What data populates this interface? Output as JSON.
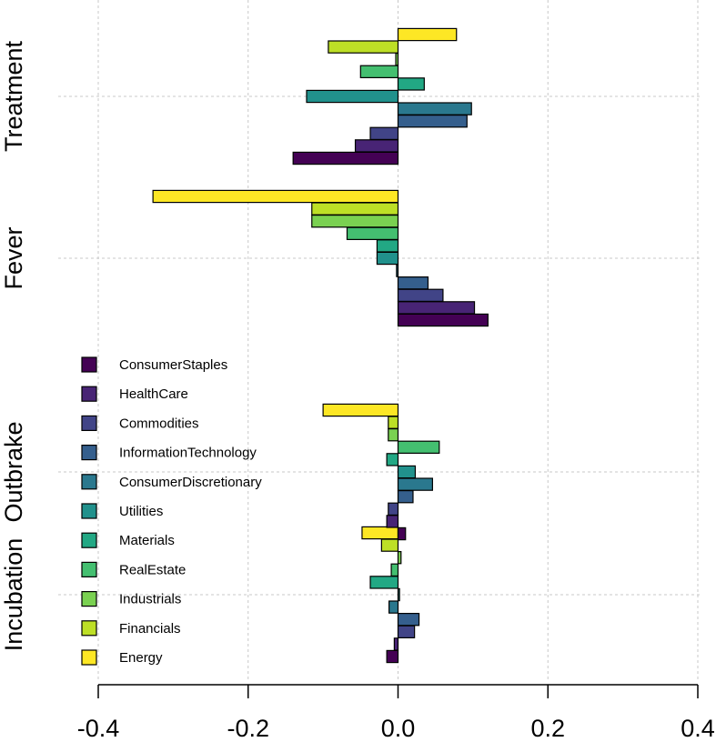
{
  "chart_data": {
    "type": "bar",
    "orientation": "horizontal",
    "title": "",
    "xlabel": "",
    "ylabel": "",
    "xlim": [
      -0.4,
      0.4
    ],
    "x_ticks": [
      "-0.4",
      "-0.2",
      "0.0",
      "0.2",
      "0.4"
    ],
    "x_tick_values": [
      -0.4,
      -0.2,
      0.0,
      0.2,
      0.4
    ],
    "grid": true,
    "legend_position": "bottom-left",
    "groups": [
      "Incubation",
      "Outbrake",
      "Fever",
      "Treatment"
    ],
    "series": [
      {
        "name": "ConsumerStaples",
        "color": "#440154",
        "values": [
          -0.015,
          0.01,
          0.12,
          -0.14
        ]
      },
      {
        "name": "HealthCare",
        "color": "#482475",
        "values": [
          -0.005,
          -0.015,
          0.102,
          -0.057
        ]
      },
      {
        "name": "Commodities",
        "color": "#414487",
        "values": [
          0.022,
          -0.013,
          0.06,
          -0.037
        ]
      },
      {
        "name": "InformationTechnology",
        "color": "#355f8d",
        "values": [
          0.028,
          0.02,
          0.04,
          0.092
        ]
      },
      {
        "name": "ConsumerDiscretionary",
        "color": "#2a788e",
        "values": [
          -0.012,
          0.046,
          -0.002,
          0.098
        ]
      },
      {
        "name": "Utilities",
        "color": "#21918c",
        "values": [
          0.002,
          0.023,
          -0.028,
          -0.122
        ]
      },
      {
        "name": "Materials",
        "color": "#22a884",
        "values": [
          -0.037,
          -0.015,
          -0.028,
          0.035
        ]
      },
      {
        "name": "RealEstate",
        "color": "#44bf70",
        "values": [
          -0.009,
          0.055,
          -0.068,
          -0.05
        ]
      },
      {
        "name": "Industrials",
        "color": "#7ad151",
        "values": [
          0.004,
          -0.013,
          -0.115,
          -0.003
        ]
      },
      {
        "name": "Financials",
        "color": "#bddf26",
        "values": [
          -0.022,
          -0.013,
          -0.115,
          -0.093
        ]
      },
      {
        "name": "Energy",
        "color": "#fde725",
        "values": [
          -0.048,
          -0.1,
          -0.327,
          0.078
        ]
      }
    ]
  }
}
